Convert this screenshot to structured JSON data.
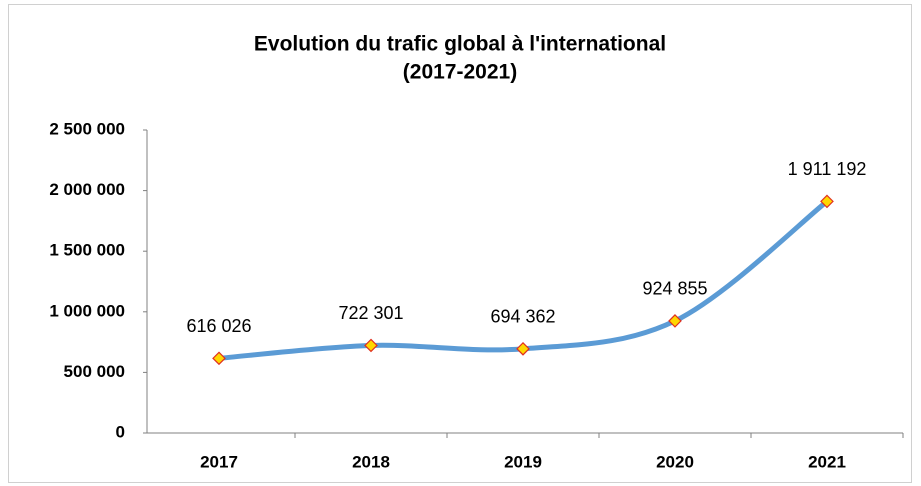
{
  "chart_data": {
    "type": "line",
    "title": [
      "Evolution du trafic global à l'international",
      "(2017-2021)"
    ],
    "categories": [
      "2017",
      "2018",
      "2019",
      "2020",
      "2021"
    ],
    "series": [
      {
        "color": "#5b9bd5",
        "values": [
          616026,
          722301,
          694362,
          924855,
          1911192
        ],
        "value_labels": [
          "616 026",
          "722 301",
          "694 362",
          "924 855",
          "1 911 192"
        ]
      }
    ],
    "marker_color": "#ffd700",
    "marker_edge_color": "#e03020",
    "ylim": [
      0,
      2500000
    ],
    "yticks": [
      0,
      {
        "value": 500000,
        "label": "500 000"
      },
      {
        "value": 1000000,
        "label": "1 000 000"
      },
      {
        "value": 1500000,
        "label": "1 500 000"
      },
      {
        "value": 2000000,
        "label": "2 000 000"
      },
      {
        "value": 2500000,
        "label": "2 500 000"
      }
    ],
    "grid": false
  }
}
